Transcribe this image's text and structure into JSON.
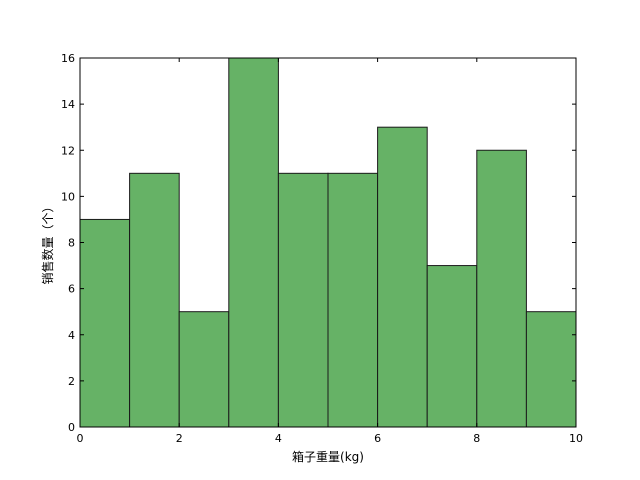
{
  "chart_data": {
    "type": "bar",
    "subtype": "histogram",
    "title": "",
    "xlabel": "箱子重量(kg)",
    "ylabel": "销售数量（个）",
    "bins": [
      {
        "start": 0,
        "end": 1,
        "value": 9
      },
      {
        "start": 1,
        "end": 2,
        "value": 11
      },
      {
        "start": 2,
        "end": 3,
        "value": 5
      },
      {
        "start": 3,
        "end": 4,
        "value": 16
      },
      {
        "start": 4,
        "end": 5,
        "value": 11
      },
      {
        "start": 5,
        "end": 6,
        "value": 11
      },
      {
        "start": 6,
        "end": 7,
        "value": 13
      },
      {
        "start": 7,
        "end": 8,
        "value": 7
      },
      {
        "start": 8,
        "end": 9,
        "value": 12
      },
      {
        "start": 9,
        "end": 10,
        "value": 5
      }
    ],
    "xlim": [
      0,
      10
    ],
    "ylim": [
      0,
      16
    ],
    "xticks": [
      "0",
      "2",
      "4",
      "6",
      "8",
      "10"
    ],
    "yticks": [
      "0",
      "2",
      "4",
      "6",
      "8",
      "10",
      "12",
      "14",
      "16"
    ],
    "grid": false,
    "legend": "none",
    "colors": {
      "bar_fill": "#66b266",
      "bar_edge": "#1a1a1a"
    }
  }
}
